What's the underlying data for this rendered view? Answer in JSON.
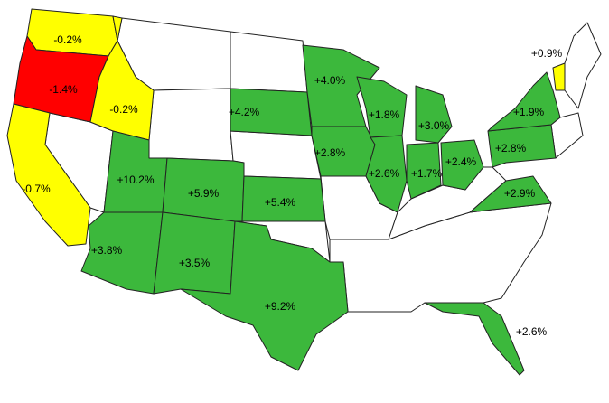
{
  "map": {
    "regions": [
      {
        "label": "-0.2%",
        "color": "#ffff00"
      },
      {
        "label": "-1.4%",
        "color": "#ff0000"
      },
      {
        "label": "-0.2%",
        "color": "#ffff00"
      },
      {
        "label": "-0.7%",
        "color": "#ffff00"
      },
      {
        "label": "+10.2%",
        "color": "#3cb83c"
      },
      {
        "label": "+5.9%",
        "color": "#3cb83c"
      },
      {
        "label": "+3.8%",
        "color": "#3cb83c"
      },
      {
        "label": "+3.5%",
        "color": "#3cb83c"
      },
      {
        "label": "+9.2%",
        "color": "#3cb83c"
      },
      {
        "label": "+5.4%",
        "color": "#3cb83c"
      },
      {
        "label": "+4.2%",
        "color": "#3cb83c"
      },
      {
        "label": "+4.0%",
        "color": "#3cb83c"
      },
      {
        "label": "+2.8%",
        "color": "#3cb83c"
      },
      {
        "label": "+1.8%",
        "color": "#3cb83c"
      },
      {
        "label": "+2.6%",
        "color": "#3cb83c"
      },
      {
        "label": "+1.7%",
        "color": "#3cb83c"
      },
      {
        "label": "+3.0%",
        "color": "#3cb83c"
      },
      {
        "label": "+2.4%",
        "color": "#3cb83c"
      },
      {
        "label": "+2.8%",
        "color": "#3cb83c"
      },
      {
        "label": "+1.9%",
        "color": "#3cb83c"
      },
      {
        "label": "+2.9%",
        "color": "#3cb83c"
      },
      {
        "label": "+2.6%",
        "color": "#3cb83c"
      },
      {
        "label": "+0.9%",
        "color": "#ffff00"
      }
    ]
  }
}
